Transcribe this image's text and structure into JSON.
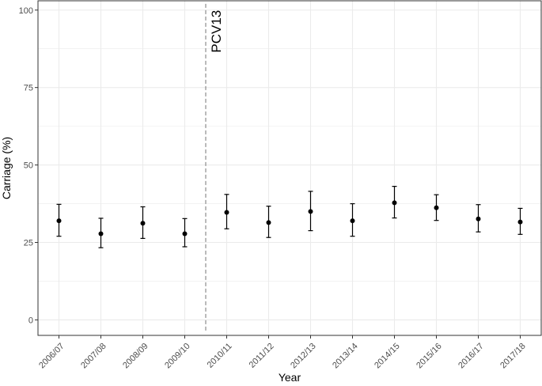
{
  "chart_data": {
    "type": "scatter",
    "title": "",
    "xlabel": "Year",
    "ylabel": "Carriage (%)",
    "categories": [
      "2006/07",
      "2007/08",
      "2008/09",
      "2009/10",
      "2010/11",
      "2011/12",
      "2012/13",
      "2013/14",
      "2014/15",
      "2015/16",
      "2016/17",
      "2017/18"
    ],
    "series": [
      {
        "values": [
          32.0,
          27.8,
          31.2,
          27.8,
          34.7,
          31.4,
          35.0,
          32.0,
          37.8,
          36.2,
          32.6,
          31.6
        ],
        "lower": [
          27.0,
          23.3,
          26.3,
          23.6,
          29.4,
          26.6,
          28.8,
          27.0,
          32.9,
          32.1,
          28.4,
          27.6
        ],
        "upper": [
          37.3,
          32.8,
          36.5,
          32.7,
          40.5,
          36.7,
          41.5,
          37.5,
          43.1,
          40.4,
          37.2,
          36.0
        ]
      }
    ],
    "ylim": [
      -5,
      103
    ],
    "yticks": [
      0,
      25,
      50,
      75,
      100
    ],
    "grid": true,
    "legend": "none",
    "annotation": {
      "text": "PCV13",
      "between": [
        "2009/10",
        "2010/11"
      ]
    },
    "colors": {
      "point": "#000000",
      "grid": "#ebebeb",
      "vline": "#8c8c8c",
      "panel_border": "#333333"
    }
  }
}
